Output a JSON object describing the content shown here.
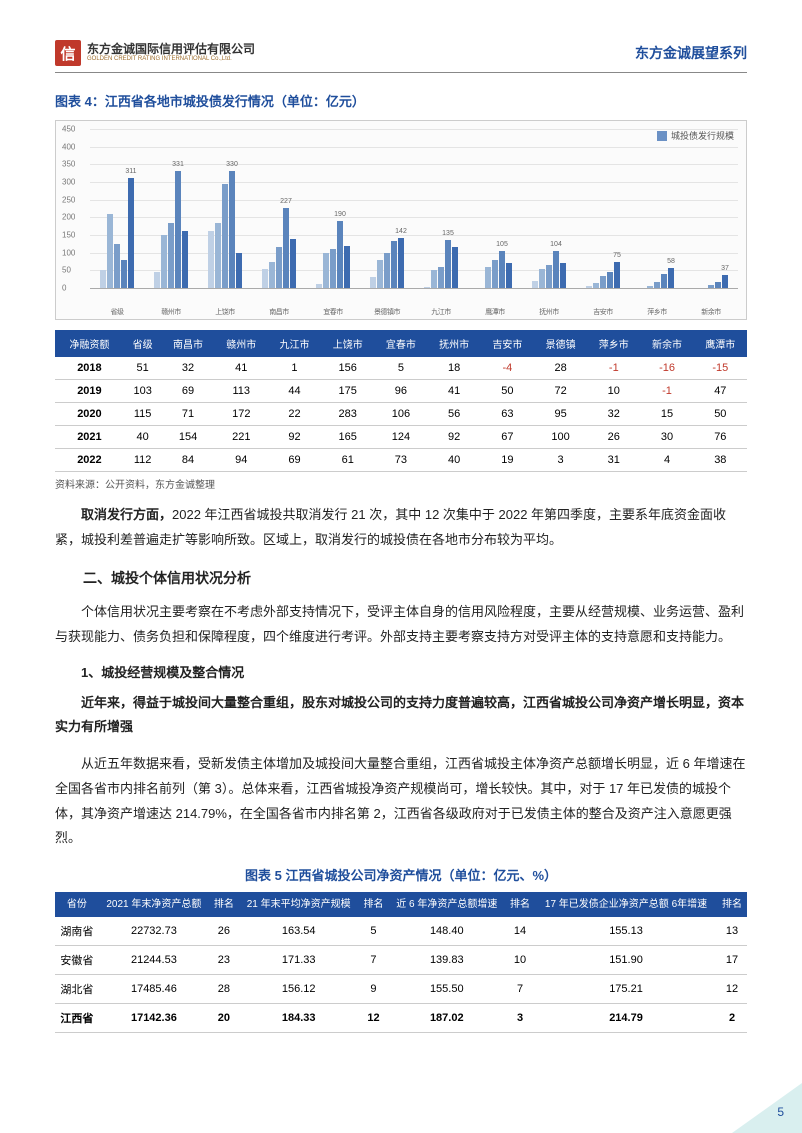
{
  "header": {
    "logo_char": "信",
    "company_cn": "东方金诚国际信用评估有限公司",
    "company_en": "GOLDEN CREDIT RATING INTERNATIONAL Co.,Ltd.",
    "series": "东方金诚展望系列"
  },
  "chart4": {
    "title": "图表 4：江西省各地市城投债发行情况（单位：亿元）",
    "legend": "城投债发行规模",
    "ymax": 450,
    "ystep": 50,
    "yticks": [
      0,
      50,
      100,
      150,
      200,
      250,
      300,
      350,
      400,
      450
    ],
    "bg": "#fbfbfb",
    "grid_color": "#e4e4e4",
    "bar_colors": [
      "#bfd0e5",
      "#9ab6d6",
      "#7a9dc9",
      "#5a84bc",
      "#3d6bb0"
    ],
    "categories": [
      "省级",
      "赣州市",
      "上饶市",
      "南昌市",
      "宜春市",
      "景德镇市",
      "九江市",
      "鹰潭市",
      "抚州市",
      "吉安市",
      "萍乡市",
      "新余市"
    ],
    "group_labels": [
      311,
      331,
      330,
      227,
      190,
      142,
      135,
      105,
      104,
      75,
      58,
      37
    ],
    "groups": [
      [
        50,
        210,
        125,
        80,
        311
      ],
      [
        45,
        150,
        185,
        331,
        160
      ],
      [
        160,
        185,
        295,
        330,
        100
      ],
      [
        55,
        75,
        115,
        227,
        140
      ],
      [
        10,
        100,
        110,
        190,
        120
      ],
      [
        30,
        80,
        100,
        132,
        142
      ],
      [
        4,
        50,
        60,
        135,
        115
      ],
      [
        0,
        60,
        80,
        105,
        70
      ],
      [
        20,
        55,
        65,
        104,
        70
      ],
      [
        7,
        15,
        35,
        45,
        75
      ],
      [
        0,
        5,
        18,
        40,
        58
      ],
      [
        0,
        0,
        8,
        18,
        37
      ]
    ]
  },
  "table4": {
    "header_left": "净融资额",
    "cols": [
      "省级",
      "南昌市",
      "赣州市",
      "九江市",
      "上饶市",
      "宜春市",
      "抚州市",
      "吉安市",
      "景德镇",
      "萍乡市",
      "新余市",
      "鹰潭市"
    ],
    "rows": [
      {
        "y": "2018",
        "v": [
          "51",
          "32",
          "41",
          "1",
          "156",
          "5",
          "18",
          "-4",
          "28",
          "-1",
          "-16",
          "-15"
        ]
      },
      {
        "y": "2019",
        "v": [
          "103",
          "69",
          "113",
          "44",
          "175",
          "96",
          "41",
          "50",
          "72",
          "10",
          "-1",
          "47"
        ]
      },
      {
        "y": "2020",
        "v": [
          "115",
          "71",
          "172",
          "22",
          "283",
          "106",
          "56",
          "63",
          "95",
          "32",
          "15",
          "50"
        ]
      },
      {
        "y": "2021",
        "v": [
          "40",
          "154",
          "221",
          "92",
          "165",
          "124",
          "92",
          "67",
          "100",
          "26",
          "30",
          "76"
        ]
      },
      {
        "y": "2022",
        "v": [
          "112",
          "84",
          "94",
          "69",
          "61",
          "73",
          "40",
          "19",
          "3",
          "31",
          "4",
          "38"
        ]
      }
    ],
    "source": "资料来源：公开资料，东方金诚整理"
  },
  "paras": {
    "p1_lead": "取消发行方面，",
    "p1": "2022 年江西省城投共取消发行 21 次，其中 12 次集中于 2022 年第四季度，主要系年底资金面收紧，城投利差普遍走扩等影响所致。区域上，取消发行的城投债在各地市分布较为平均。",
    "h2": "二、城投个体信用状况分析",
    "p2": "个体信用状况主要考察在不考虑外部支持情况下，受评主体自身的信用风险程度，主要从经营规模、业务运营、盈利与获现能力、债务负担和保障程度，四个维度进行考评。外部支持主要考察支持方对受评主体的支持意愿和支持能力。",
    "h3": "1、城投经营规模及整合情况",
    "bold": "近年来，得益于城投间大量整合重组，股东对城投公司的支持力度普遍较高，江西省城投公司净资产增长明显，资本实力有所增强",
    "p3": "从近五年数据来看，受新发债主体增加及城投间大量整合重组，江西省城投主体净资产总额增长明显，近 6 年增速在全国各省市内排名前列（第 3）。总体来看，江西省城投净资产规模尚可，增长较快。其中，对于 17 年已发债的城投个体，其净资产增速达 214.79%，在全国各省市内排名第 2，江西省各级政府对于已发债主体的整合及资产注入意愿更强烈。"
  },
  "fig5": {
    "title": "图表 5 江西省城投公司净资产情况（单位：亿元、%）",
    "cols": [
      "省份",
      "2021 年末净资产总额",
      "排名",
      "21 年末平均净资产规模",
      "排名",
      "近 6 年净资产总额增速",
      "排名",
      "17 年已发债企业净资产总额 6年增速",
      "排名"
    ],
    "rows": [
      {
        "p": "湖南省",
        "v": [
          "22732.73",
          "26",
          "163.54",
          "5",
          "148.40",
          "14",
          "155.13",
          "13"
        ]
      },
      {
        "p": "安徽省",
        "v": [
          "21244.53",
          "23",
          "171.33",
          "7",
          "139.83",
          "10",
          "151.90",
          "17"
        ]
      },
      {
        "p": "湖北省",
        "v": [
          "17485.46",
          "28",
          "156.12",
          "9",
          "155.50",
          "7",
          "175.21",
          "12"
        ]
      },
      {
        "p": "江西省",
        "v": [
          "17142.36",
          "20",
          "184.33",
          "12",
          "187.02",
          "3",
          "214.79",
          "2"
        ],
        "hl": true
      }
    ]
  },
  "pagenum": "5"
}
